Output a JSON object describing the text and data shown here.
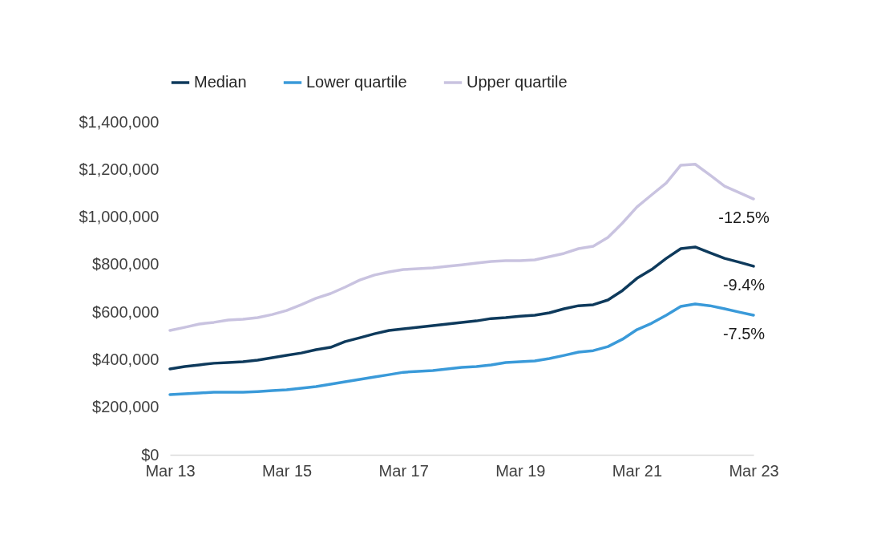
{
  "chart_data": {
    "type": "line",
    "legend": "top",
    "grid": false,
    "line_style": "solid",
    "x": [
      "2013-03",
      "2013-06",
      "2013-09",
      "2013-12",
      "2014-03",
      "2014-06",
      "2014-09",
      "2014-12",
      "2015-03",
      "2015-06",
      "2015-09",
      "2015-12",
      "2016-03",
      "2016-06",
      "2016-09",
      "2016-12",
      "2017-03",
      "2017-06",
      "2017-09",
      "2017-12",
      "2018-03",
      "2018-06",
      "2018-09",
      "2018-12",
      "2019-03",
      "2019-06",
      "2019-09",
      "2019-12",
      "2020-03",
      "2020-06",
      "2020-09",
      "2020-12",
      "2021-03",
      "2021-06",
      "2021-09",
      "2021-12",
      "2022-03",
      "2022-06",
      "2022-09",
      "2022-12",
      "2023-03"
    ],
    "xlim": [
      "2013-03",
      "2023-03"
    ],
    "xticks": [
      {
        "value": "2013-03",
        "label": "Mar 13"
      },
      {
        "value": "2015-03",
        "label": "Mar 15"
      },
      {
        "value": "2017-03",
        "label": "Mar 17"
      },
      {
        "value": "2019-03",
        "label": "Mar 19"
      },
      {
        "value": "2021-03",
        "label": "Mar 21"
      },
      {
        "value": "2023-03",
        "label": "Mar 23"
      }
    ],
    "ylim": [
      0,
      1400000
    ],
    "yticks": [
      {
        "value": 0,
        "label": "$0"
      },
      {
        "value": 200000,
        "label": "$200,000"
      },
      {
        "value": 400000,
        "label": "$400,000"
      },
      {
        "value": 600000,
        "label": "$600,000"
      },
      {
        "value": 800000,
        "label": "$800,000"
      },
      {
        "value": 1000000,
        "label": "$1,000,000"
      },
      {
        "value": 1200000,
        "label": "$1,200,000"
      },
      {
        "value": 1400000,
        "label": "$1,400,000"
      }
    ],
    "series": [
      {
        "name": "Median",
        "color": "#0e3a5c",
        "values": [
          361000,
          371000,
          378000,
          385000,
          388000,
          391000,
          398000,
          408000,
          418000,
          428000,
          442000,
          452000,
          476000,
          492000,
          509000,
          523000,
          530000,
          536000,
          543000,
          550000,
          557000,
          563000,
          573000,
          577000,
          583000,
          587000,
          597000,
          614000,
          627000,
          631000,
          651000,
          691000,
          742000,
          779000,
          826000,
          867000,
          874000,
          850000,
          826000,
          810000,
          793000
        ]
      },
      {
        "name": "Lower quartile",
        "color": "#3a9ad9",
        "values": [
          253000,
          256000,
          260000,
          263000,
          263000,
          263000,
          266000,
          270000,
          273000,
          280000,
          287000,
          297000,
          307000,
          317000,
          327000,
          337000,
          347000,
          351000,
          354000,
          361000,
          368000,
          371000,
          378000,
          388000,
          391000,
          395000,
          405000,
          418000,
          432000,
          438000,
          455000,
          486000,
          526000,
          553000,
          587000,
          624000,
          634000,
          627000,
          614000,
          600000,
          587000
        ]
      },
      {
        "name": "Upper quartile",
        "color": "#c9c3e0",
        "values": [
          523000,
          536000,
          550000,
          557000,
          567000,
          570000,
          577000,
          590000,
          607000,
          631000,
          658000,
          678000,
          705000,
          735000,
          756000,
          769000,
          779000,
          783000,
          786000,
          793000,
          799000,
          806000,
          813000,
          816000,
          816000,
          820000,
          833000,
          847000,
          867000,
          877000,
          914000,
          975000,
          1042000,
          1093000,
          1143000,
          1218000,
          1222000,
          1177000,
          1130000,
          1103000,
          1076000
        ]
      }
    ],
    "annotations": [
      {
        "text": "-12.5%",
        "x": "2023-03",
        "y": 1076000
      },
      {
        "text": "-9.4%",
        "x": "2023-03",
        "y": 793000
      },
      {
        "text": "-7.5%",
        "x": "2023-03",
        "y": 587000
      }
    ]
  }
}
